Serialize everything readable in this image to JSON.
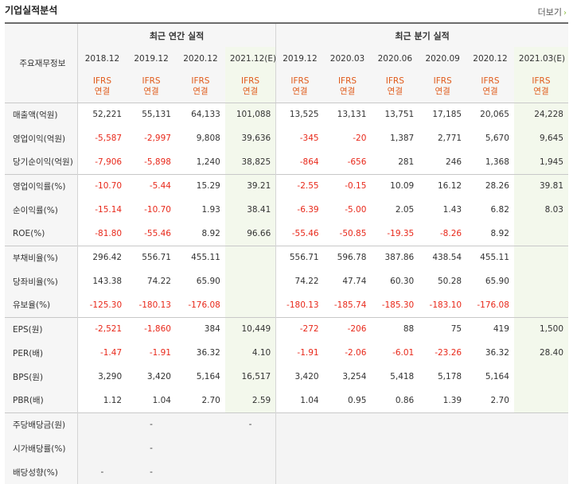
{
  "page": {
    "title": "기업실적분석",
    "more_label": "더보기",
    "more_icon": "chevron-right-icon"
  },
  "header": {
    "metric_col_label": "주요재무정보",
    "annual_group": "최근 연간 실적",
    "quarter_group": "최근 분기 실적",
    "annual_periods": [
      "2018.12",
      "2019.12",
      "2020.12",
      "2021.12(E)"
    ],
    "quarter_periods": [
      "2019.12",
      "2020.03",
      "2020.06",
      "2020.09",
      "2020.12",
      "2021.03(E)"
    ],
    "ifrs_top": "IFRS",
    "ifrs_bottom": "연결"
  },
  "rows": [
    {
      "label": "매출액(억원)",
      "values": [
        "52,221",
        "55,131",
        "64,133",
        "101,088",
        "13,525",
        "13,131",
        "13,751",
        "17,185",
        "20,065",
        "24,228"
      ]
    },
    {
      "label": "영업이익(억원)",
      "values": [
        "-5,587",
        "-2,997",
        "9,808",
        "39,636",
        "-345",
        "-20",
        "1,387",
        "2,771",
        "5,670",
        "9,645"
      ]
    },
    {
      "label": "당기순이익(억원)",
      "values": [
        "-7,906",
        "-5,898",
        "1,240",
        "38,825",
        "-864",
        "-656",
        "281",
        "246",
        "1,368",
        "1,945"
      ]
    },
    {
      "label": "영업이익률(%)",
      "values": [
        "-10.70",
        "-5.44",
        "15.29",
        "39.21",
        "-2.55",
        "-0.15",
        "10.09",
        "16.12",
        "28.26",
        "39.81"
      ]
    },
    {
      "label": "순이익률(%)",
      "values": [
        "-15.14",
        "-10.70",
        "1.93",
        "38.41",
        "-6.39",
        "-5.00",
        "2.05",
        "1.43",
        "6.82",
        "8.03"
      ]
    },
    {
      "label": "ROE(%)",
      "values": [
        "-81.80",
        "-55.46",
        "8.92",
        "96.66",
        "-55.46",
        "-50.85",
        "-19.35",
        "-8.26",
        "8.92",
        ""
      ]
    },
    {
      "label": "부채비율(%)",
      "values": [
        "296.42",
        "556.71",
        "455.11",
        "",
        "556.71",
        "596.78",
        "387.86",
        "438.54",
        "455.11",
        ""
      ]
    },
    {
      "label": "당좌비율(%)",
      "values": [
        "143.38",
        "74.22",
        "65.90",
        "",
        "74.22",
        "47.74",
        "60.30",
        "50.28",
        "65.90",
        ""
      ]
    },
    {
      "label": "유보율(%)",
      "values": [
        "-125.30",
        "-180.13",
        "-176.08",
        "",
        "-180.13",
        "-185.74",
        "-185.30",
        "-183.10",
        "-176.08",
        ""
      ]
    },
    {
      "label": "EPS(원)",
      "values": [
        "-2,521",
        "-1,860",
        "384",
        "10,449",
        "-272",
        "-206",
        "88",
        "75",
        "419",
        "1,500"
      ]
    },
    {
      "label": "PER(배)",
      "values": [
        "-1.47",
        "-1.91",
        "36.32",
        "4.10",
        "-1.91",
        "-2.06",
        "-6.01",
        "-23.26",
        "36.32",
        "28.40"
      ]
    },
    {
      "label": "BPS(원)",
      "values": [
        "3,290",
        "3,420",
        "5,164",
        "16,517",
        "3,420",
        "3,254",
        "5,418",
        "5,178",
        "5,164",
        ""
      ]
    },
    {
      "label": "PBR(배)",
      "values": [
        "1.12",
        "1.04",
        "2.70",
        "2.59",
        "1.04",
        "0.95",
        "0.86",
        "1.39",
        "2.70",
        ""
      ]
    },
    {
      "label": "주당배당금(원)",
      "values": [
        "",
        "-",
        "",
        "-",
        "",
        "",
        "",
        "",
        "",
        ""
      ]
    },
    {
      "label": "시가배당률(%)",
      "values": [
        "",
        "-",
        "",
        "",
        "",
        "",
        "",
        "",
        "",
        ""
      ]
    },
    {
      "label": "배당성향(%)",
      "values": [
        "-",
        "-",
        "",
        "",
        "",
        "",
        "",
        "",
        "",
        ""
      ]
    }
  ],
  "colors": {
    "negative": "#e8281a",
    "ifrs": "#e05a1a",
    "estimate_bg": "#f3f8ec",
    "accent": "#8bbf3f"
  }
}
